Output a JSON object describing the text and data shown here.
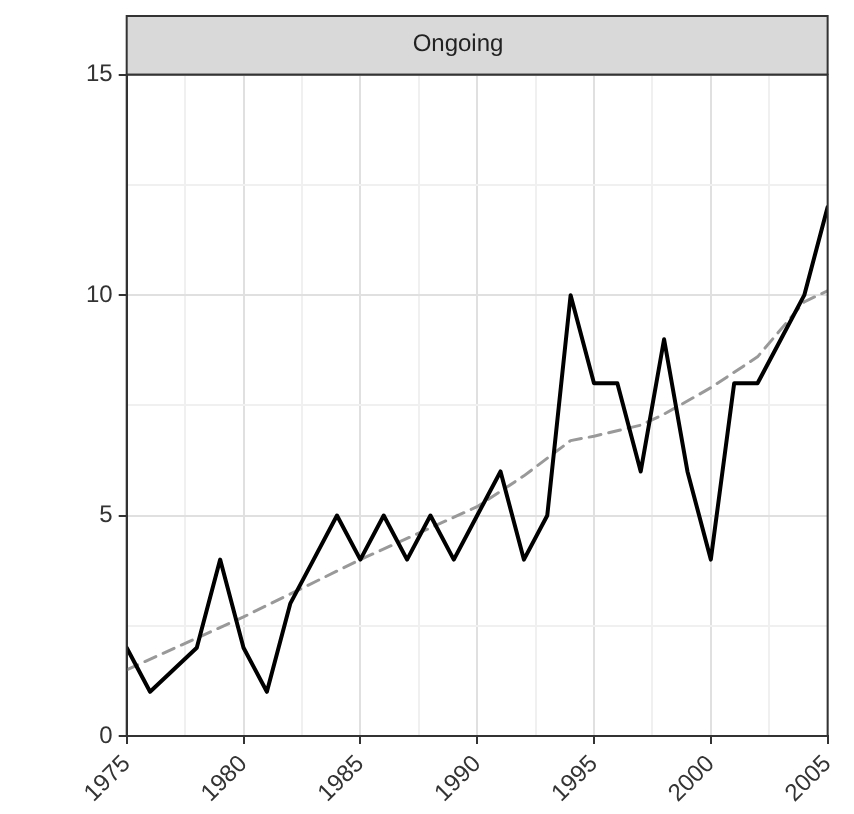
{
  "chart_data": {
    "type": "line",
    "title": "Ongoing",
    "x": [
      1975,
      1976,
      1977,
      1978,
      1979,
      1980,
      1981,
      1982,
      1983,
      1984,
      1985,
      1986,
      1987,
      1988,
      1989,
      1990,
      1991,
      1992,
      1993,
      1994,
      1995,
      1996,
      1997,
      1998,
      1999,
      2000,
      2001,
      2002,
      2003,
      2004,
      2005
    ],
    "series": [
      {
        "color": "#000000",
        "values": [
          2,
          1,
          1.5,
          2,
          4,
          2,
          1,
          3,
          4,
          5,
          4,
          5,
          4,
          5,
          4,
          5,
          6,
          4,
          5,
          10,
          8,
          8,
          6,
          9,
          6,
          4,
          8,
          8,
          9,
          10,
          12
        ],
        "line_style": "solid"
      },
      {
        "color": "#999999",
        "x": [
          1975,
          1980,
          1985,
          1990,
          1992,
          1994,
          1995,
          1997,
          1998,
          2000,
          2002,
          2004,
          2005
        ],
        "values": [
          1.5,
          2.7,
          4,
          5.2,
          5.9,
          6.7,
          6.8,
          7.05,
          7.3,
          7.9,
          8.6,
          9.85,
          10.1
        ],
        "line_style": "dashed"
      }
    ],
    "xlim": [
      1975,
      2005
    ],
    "xticks": [
      1975,
      {
        "value": 1977.5,
        "label": null
      },
      1980,
      {
        "value": 1982.5,
        "label": null
      },
      1985,
      {
        "value": 1987.5,
        "label": null
      },
      1990,
      {
        "value": 1992.5,
        "label": null
      },
      1995,
      {
        "value": 1997.5,
        "label": null
      },
      2000,
      {
        "value": 2002.5,
        "label": null
      },
      2005
    ],
    "ylim": [
      0,
      15
    ],
    "yticks": [
      0,
      {
        "value": 2.5,
        "label": null
      },
      5,
      {
        "value": 7.5,
        "label": null
      },
      10,
      {
        "value": 12.5,
        "label": null
      },
      15
    ],
    "grid": true,
    "legend": false,
    "marker": "none"
  }
}
